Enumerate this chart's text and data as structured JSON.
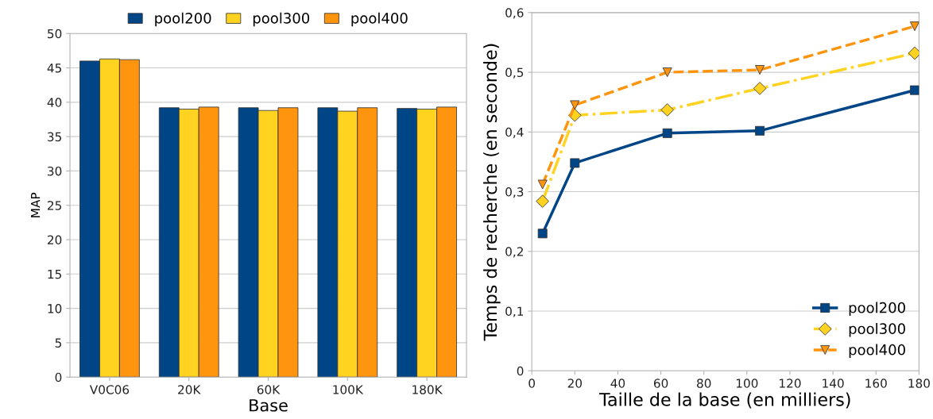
{
  "chart_data": [
    {
      "type": "bar",
      "xlabel": "Base",
      "ylabel": "MAP",
      "categories": [
        "V0C06",
        "20K",
        "60K",
        "100K",
        "180K"
      ],
      "series": [
        {
          "name": "pool200",
          "color": "#004586",
          "values": [
            46.0,
            39.2,
            39.2,
            39.2,
            39.1
          ]
        },
        {
          "name": "pool300",
          "color": "#ffd320",
          "values": [
            46.3,
            39.0,
            38.8,
            38.7,
            39.0
          ]
        },
        {
          "name": "pool400",
          "color": "#ff950e",
          "values": [
            46.2,
            39.3,
            39.2,
            39.2,
            39.3
          ]
        }
      ],
      "ylim": [
        0,
        50
      ],
      "yticks": [
        0,
        5,
        10,
        15,
        20,
        25,
        30,
        35,
        40,
        45,
        50
      ],
      "grid": "y",
      "legend": "top"
    },
    {
      "type": "line",
      "xlabel": "Taille de la base (en milliers)",
      "ylabel": "Temps de recherche (en seconde)",
      "x": [
        5,
        20,
        63,
        106,
        178
      ],
      "series": [
        {
          "name": "pool200",
          "color": "#004586",
          "marker": "square",
          "line_style": "solid",
          "values": [
            0.23,
            0.348,
            0.398,
            0.402,
            0.47
          ]
        },
        {
          "name": "pool300",
          "color": "#ffd320",
          "marker": "diamond",
          "line_style": "dashdot",
          "values": [
            0.284,
            0.428,
            0.437,
            0.473,
            0.532
          ]
        },
        {
          "name": "pool400",
          "color": "#ff950e",
          "marker": "triangle",
          "line_style": "dashed",
          "values": [
            0.312,
            0.445,
            0.5,
            0.504,
            0.577
          ]
        }
      ],
      "xlim": [
        0,
        180
      ],
      "xticks": [
        0,
        20,
        40,
        60,
        80,
        100,
        120,
        140,
        160,
        180
      ],
      "ylim": [
        0,
        0.6
      ],
      "yticks": [
        {
          "value": 0,
          "label": "0"
        },
        {
          "value": 0.1,
          "label": "0,1"
        },
        {
          "value": 0.2,
          "label": "0,2"
        },
        {
          "value": 0.3,
          "label": "0,3"
        },
        {
          "value": 0.4,
          "label": "0,4"
        },
        {
          "value": 0.5,
          "label": "0,5"
        },
        {
          "value": 0.6,
          "label": "0,6"
        }
      ],
      "grid": "y",
      "legend": "bottom right"
    }
  ]
}
